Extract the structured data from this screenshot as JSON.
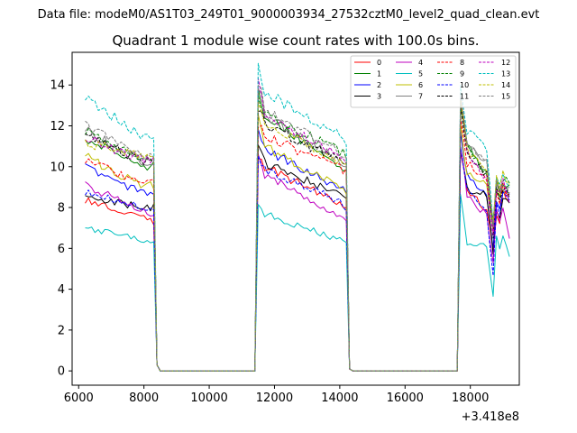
{
  "chart_data": {
    "type": "line",
    "suptitle": "Data file: modeM0/AS1T03_249T01_9000003934_27532cztM0_level2_quad_clean.evt",
    "title": "Quadrant 1 module wise count rates with 100.0s bins.",
    "xlabel": "",
    "ylabel": "",
    "x_offset_label": "+3.418e8",
    "xlim": [
      5800,
      19500
    ],
    "ylim": [
      -0.7,
      15.6
    ],
    "xticks": [
      6000,
      8000,
      10000,
      12000,
      14000,
      16000,
      18000
    ],
    "yticks": [
      0,
      2,
      4,
      6,
      8,
      10,
      12,
      14
    ],
    "legend_location": "top-right",
    "x_knots": [
      6200,
      8000,
      8300,
      8400,
      8500,
      11300,
      11400,
      11500,
      11700,
      14000,
      14200,
      14300,
      14400,
      17500,
      17600,
      17700,
      17900,
      18500,
      18700,
      18800,
      18900,
      19000,
      19200
    ],
    "series": [
      {
        "name": "0",
        "color": "#ff0000",
        "dash": "solid",
        "values": [
          8.4,
          7.5,
          7.3,
          0.3,
          0,
          0,
          0,
          10.3,
          10.0,
          8.2,
          8.0,
          0.1,
          0,
          0,
          0,
          10.8,
          8.8,
          7.9,
          6.0,
          7.6,
          7.1,
          8.8,
          8.3
        ]
      },
      {
        "name": "1",
        "color": "#008000",
        "dash": "solid",
        "values": [
          11.4,
          10.0,
          10.1,
          0.3,
          0,
          0,
          0,
          13.8,
          12.6,
          10.0,
          9.8,
          0.1,
          0,
          0,
          0,
          13.3,
          11.0,
          9.6,
          7.3,
          8.8,
          8.7,
          9.1,
          8.9
        ]
      },
      {
        "name": "2",
        "color": "#0000ff",
        "dash": "solid",
        "values": [
          10.0,
          8.7,
          8.5,
          0.3,
          0,
          0,
          0,
          11.7,
          10.8,
          9.0,
          8.8,
          0.1,
          0,
          0,
          0,
          11.6,
          9.6,
          8.5,
          6.0,
          8.2,
          7.9,
          8.9,
          8.7
        ]
      },
      {
        "name": "3",
        "color": "#000000",
        "dash": "solid",
        "values": [
          8.5,
          8.0,
          8.0,
          0.3,
          0,
          0,
          0,
          11.1,
          10.2,
          8.6,
          8.4,
          0.1,
          0,
          0,
          0,
          10.9,
          8.9,
          8.6,
          5.8,
          8.0,
          7.5,
          8.6,
          8.4
        ]
      },
      {
        "name": "4",
        "color": "#bf00bf",
        "dash": "solid",
        "values": [
          9.1,
          7.8,
          7.7,
          0.3,
          0,
          0,
          0,
          10.8,
          9.6,
          7.6,
          7.5,
          0.1,
          0,
          0,
          0,
          10.9,
          8.6,
          7.6,
          5.4,
          8.0,
          7.3,
          8.1,
          6.6
        ]
      },
      {
        "name": "5",
        "color": "#00bfbf",
        "dash": "solid",
        "values": [
          7.0,
          6.4,
          6.2,
          0.3,
          0,
          0,
          0,
          8.0,
          7.7,
          6.4,
          6.3,
          0.1,
          0,
          0,
          0,
          8.6,
          6.3,
          6.1,
          3.6,
          6.6,
          6.0,
          6.6,
          5.5
        ]
      },
      {
        "name": "6",
        "color": "#bfbf00",
        "dash": "solid",
        "values": [
          10.5,
          9.0,
          9.1,
          0.3,
          0,
          0,
          0,
          12.4,
          11.0,
          9.0,
          8.8,
          0.1,
          0,
          0,
          0,
          12.0,
          9.6,
          9.2,
          6.8,
          9.2,
          8.6,
          9.0,
          8.7
        ]
      },
      {
        "name": "7",
        "color": "#808080",
        "dash": "solid",
        "values": [
          11.8,
          10.2,
          10.1,
          0.3,
          0,
          0,
          0,
          14.1,
          12.5,
          10.3,
          10.1,
          0.1,
          0,
          0,
          0,
          13.5,
          11.0,
          10.2,
          7.2,
          9.0,
          8.8,
          9.0,
          8.8
        ]
      },
      {
        "name": "8",
        "color": "#ff0000",
        "dash": "dashed",
        "values": [
          10.3,
          9.2,
          9.2,
          0.3,
          0,
          0,
          0,
          12.1,
          11.5,
          9.9,
          9.7,
          0.1,
          0,
          0,
          0,
          12.6,
          10.2,
          9.4,
          6.8,
          8.8,
          8.2,
          9.1,
          8.5
        ]
      },
      {
        "name": "9",
        "color": "#008000",
        "dash": "dashed",
        "values": [
          11.7,
          10.4,
          10.4,
          0.3,
          0,
          0,
          0,
          13.3,
          12.5,
          10.8,
          10.6,
          0.1,
          0,
          0,
          0,
          13.2,
          11.0,
          9.5,
          7.3,
          9.3,
          8.9,
          9.5,
          9.1
        ]
      },
      {
        "name": "10",
        "color": "#0000ff",
        "dash": "dashed",
        "values": [
          8.8,
          8.0,
          8.0,
          0.3,
          0,
          0,
          0,
          10.5,
          9.9,
          8.3,
          8.0,
          0.1,
          0,
          0,
          0,
          11.0,
          9.0,
          7.8,
          4.6,
          8.3,
          7.8,
          8.8,
          8.3
        ]
      },
      {
        "name": "11",
        "color": "#000000",
        "dash": "dashed",
        "values": [
          11.5,
          10.3,
          10.3,
          0.3,
          0,
          0,
          0,
          13.0,
          12.0,
          10.3,
          10.1,
          0.1,
          0,
          0,
          0,
          12.9,
          10.6,
          9.6,
          6.5,
          9.0,
          8.5,
          9.0,
          8.6
        ]
      },
      {
        "name": "12",
        "color": "#bf00bf",
        "dash": "dashed",
        "values": [
          11.4,
          10.3,
          10.3,
          0.3,
          0,
          0,
          0,
          14.6,
          12.6,
          10.5,
          10.3,
          0.1,
          0,
          0,
          0,
          13.4,
          10.8,
          9.4,
          6.7,
          9.0,
          8.6,
          9.5,
          8.3
        ]
      },
      {
        "name": "13",
        "color": "#00bfbf",
        "dash": "dashed",
        "values": [
          13.3,
          11.5,
          11.3,
          0.3,
          0,
          0,
          0,
          14.9,
          13.6,
          11.6,
          11.3,
          0.1,
          0,
          0,
          0,
          13.9,
          11.7,
          10.9,
          7.3,
          9.5,
          9.3,
          9.6,
          9.2
        ]
      },
      {
        "name": "14",
        "color": "#bfbf00",
        "dash": "dashed",
        "values": [
          11.2,
          10.5,
          10.5,
          0.3,
          0,
          0,
          0,
          13.2,
          12.2,
          10.2,
          10.0,
          0.1,
          0,
          0,
          0,
          13.0,
          10.8,
          9.9,
          7.3,
          9.5,
          8.9,
          9.7,
          9.0
        ]
      },
      {
        "name": "15",
        "color": "#808080",
        "dash": "dashed",
        "values": [
          12.0,
          10.6,
          10.6,
          0.3,
          0,
          0,
          0,
          14.3,
          12.8,
          10.7,
          10.5,
          0.1,
          0,
          0,
          0,
          13.4,
          11.1,
          10.1,
          7.0,
          9.2,
          8.7,
          9.3,
          8.8
        ]
      }
    ]
  }
}
